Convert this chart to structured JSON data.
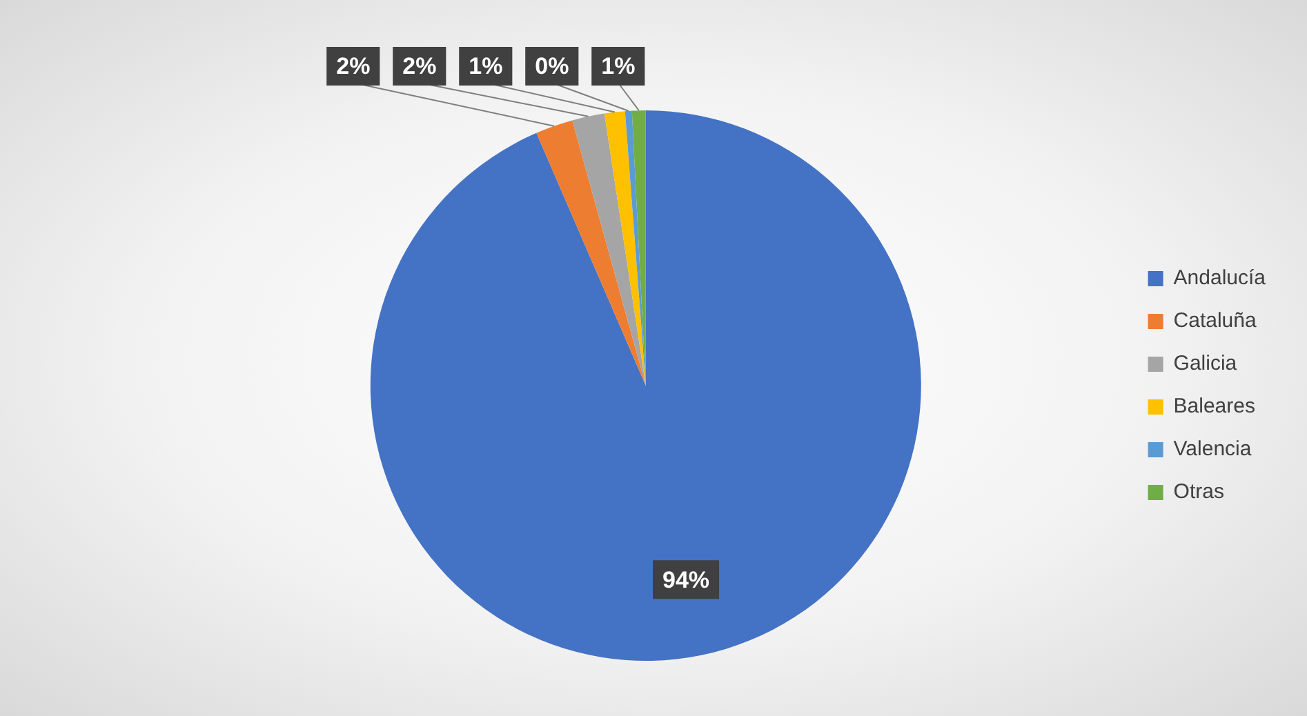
{
  "chart_data": {
    "type": "pie",
    "categories": [
      "Andalucía",
      "Cataluña",
      "Galicia",
      "Baleares",
      "Valencia",
      "Otras"
    ],
    "values": [
      93.5,
      2.2,
      1.9,
      1.2,
      0.4,
      0.8
    ],
    "colors": [
      "#4472c4",
      "#ed7d31",
      "#a5a5a5",
      "#ffc000",
      "#5b9bd5",
      "#70ad47"
    ],
    "value_labels": [
      "94%",
      "2%",
      "2%",
      "1%",
      "0%",
      "1%"
    ],
    "legend": "right"
  }
}
